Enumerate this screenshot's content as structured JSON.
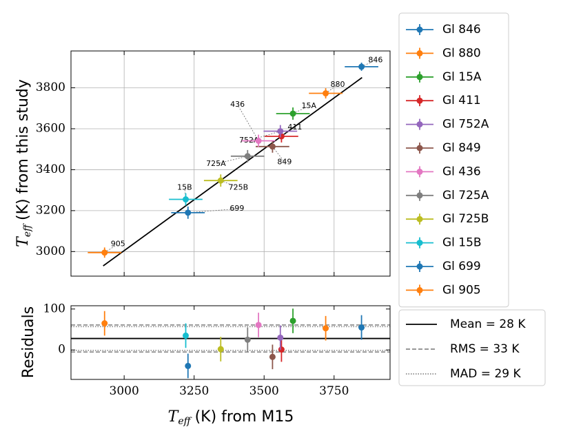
{
  "chart_data": [
    {
      "type": "scatter",
      "panel": "main",
      "xlabel": "T_eff (K) from M15",
      "ylabel_var": "T",
      "ylabel_sub": "eff",
      "ylabel_rest": "(K) from this study",
      "xlim": [
        2810,
        3950
      ],
      "ylim": [
        2880,
        3980
      ],
      "yticks": [
        3000,
        3200,
        3400,
        3600,
        3800
      ],
      "grid": true,
      "fit_line": {
        "x": [
          2925,
          3850
        ],
        "y": [
          2930,
          3850
        ]
      },
      "series": [
        {
          "name": "Gl 846",
          "label": "846",
          "color": "#1f77b4",
          "x": 3848,
          "xerr": 60,
          "y": 3903,
          "yerr": 20,
          "label_pos": [
            3898,
            3935
          ]
        },
        {
          "name": "Gl 880",
          "label": "880",
          "color": "#ff7f0e",
          "x": 3720,
          "xerr": 60,
          "y": 3773,
          "yerr": 25,
          "label_pos": [
            3763,
            3816
          ]
        },
        {
          "name": "Gl 15A",
          "label": "15A",
          "color": "#2ca02c",
          "x": 3603,
          "xerr": 60,
          "y": 3674,
          "yerr": 30,
          "label_pos": [
            3660,
            3711
          ]
        },
        {
          "name": "Gl 411",
          "label": "411",
          "color": "#d62728",
          "x": 3562,
          "xerr": 60,
          "y": 3563,
          "yerr": 30,
          "label_pos": [
            3610,
            3607
          ]
        },
        {
          "name": "Gl 752A",
          "label": "752A",
          "color": "#9467bd",
          "x": 3558,
          "xerr": 60,
          "y": 3588,
          "yerr": 30,
          "label_pos": [
            3446,
            3542
          ]
        },
        {
          "name": "Gl 849",
          "label": "849",
          "color": "#8c564b",
          "x": 3530,
          "xerr": 60,
          "y": 3513,
          "yerr": 30,
          "label_pos": [
            3573,
            3437
          ]
        },
        {
          "name": "Gl 436",
          "label": "436",
          "color": "#e377c2",
          "x": 3480,
          "xerr": 60,
          "y": 3541,
          "yerr": 30,
          "label_pos": [
            3405,
            3718
          ]
        },
        {
          "name": "Gl 725A",
          "label": "725A",
          "color": "#7f7f7f",
          "x": 3441,
          "xerr": 60,
          "y": 3466,
          "yerr": 30,
          "label_pos": [
            3328,
            3428
          ]
        },
        {
          "name": "Gl 725B",
          "label": "725B",
          "color": "#bcbd22",
          "x": 3345,
          "xerr": 60,
          "y": 3347,
          "yerr": 30,
          "label_pos": [
            3408,
            3313
          ]
        },
        {
          "name": "Gl 15B",
          "label": "15B",
          "color": "#17becf",
          "x": 3220,
          "xerr": 60,
          "y": 3255,
          "yerr": 30,
          "label_pos": [
            3216,
            3312
          ]
        },
        {
          "name": "Gl 699",
          "label": "699",
          "color": "#1f77b4",
          "x": 3228,
          "xerr": 60,
          "y": 3190,
          "yerr": 30,
          "label_pos": [
            3403,
            3209
          ]
        },
        {
          "name": "Gl 905",
          "label": "905",
          "color": "#ff7f0e",
          "x": 2930,
          "xerr": 60,
          "y": 2995,
          "yerr": 25,
          "label_pos": [
            2978,
            3037
          ]
        }
      ]
    },
    {
      "type": "scatter",
      "panel": "residuals",
      "xlabel_var": "T",
      "xlabel_sub": "eff",
      "xlabel_rest": "(K) from M15",
      "ylabel": "Residuals",
      "xlim": [
        2810,
        3950
      ],
      "ylim": [
        -72,
        108
      ],
      "xticks": [
        3000,
        3250,
        3500,
        3750
      ],
      "yticks": [
        0,
        100
      ],
      "mean": 28,
      "rms": 33,
      "mad": 29,
      "series": [
        {
          "name": "Gl 846",
          "color": "#1f77b4",
          "x": 3848,
          "y": 55,
          "yerr": 30
        },
        {
          "name": "Gl 880",
          "color": "#ff7f0e",
          "x": 3720,
          "y": 53,
          "yerr": 30
        },
        {
          "name": "Gl 15A",
          "color": "#2ca02c",
          "x": 3603,
          "y": 71,
          "yerr": 30
        },
        {
          "name": "Gl 411",
          "color": "#d62728",
          "x": 3562,
          "y": 1,
          "yerr": 30
        },
        {
          "name": "Gl 752A",
          "color": "#9467bd",
          "x": 3558,
          "y": 30,
          "yerr": 30
        },
        {
          "name": "Gl 849",
          "color": "#8c564b",
          "x": 3530,
          "y": -17,
          "yerr": 30
        },
        {
          "name": "Gl 436",
          "color": "#e377c2",
          "x": 3480,
          "y": 61,
          "yerr": 30
        },
        {
          "name": "Gl 725A",
          "color": "#7f7f7f",
          "x": 3441,
          "y": 25,
          "yerr": 30
        },
        {
          "name": "Gl 725B",
          "color": "#bcbd22",
          "x": 3345,
          "y": 2,
          "yerr": 30
        },
        {
          "name": "Gl 15B",
          "color": "#17becf",
          "x": 3220,
          "y": 35,
          "yerr": 30
        },
        {
          "name": "Gl 699",
          "color": "#1f77b4",
          "x": 3228,
          "y": -39,
          "yerr": 30
        },
        {
          "name": "Gl 905",
          "color": "#ff7f0e",
          "x": 2930,
          "y": 65,
          "yerr": 30
        }
      ]
    }
  ],
  "legend_main": [
    "Gl 846",
    "Gl 880",
    "Gl 15A",
    "Gl 411",
    "Gl 752A",
    "Gl 849",
    "Gl 436",
    "Gl 725A",
    "Gl 725B",
    "Gl 15B",
    "Gl 699",
    "Gl 905"
  ],
  "legend_residuals": [
    {
      "label": "Mean = 28 K",
      "style": "solid"
    },
    {
      "label": "RMS = 33 K",
      "style": "dashed"
    },
    {
      "label": "MAD = 29 K",
      "style": "dotted"
    }
  ]
}
